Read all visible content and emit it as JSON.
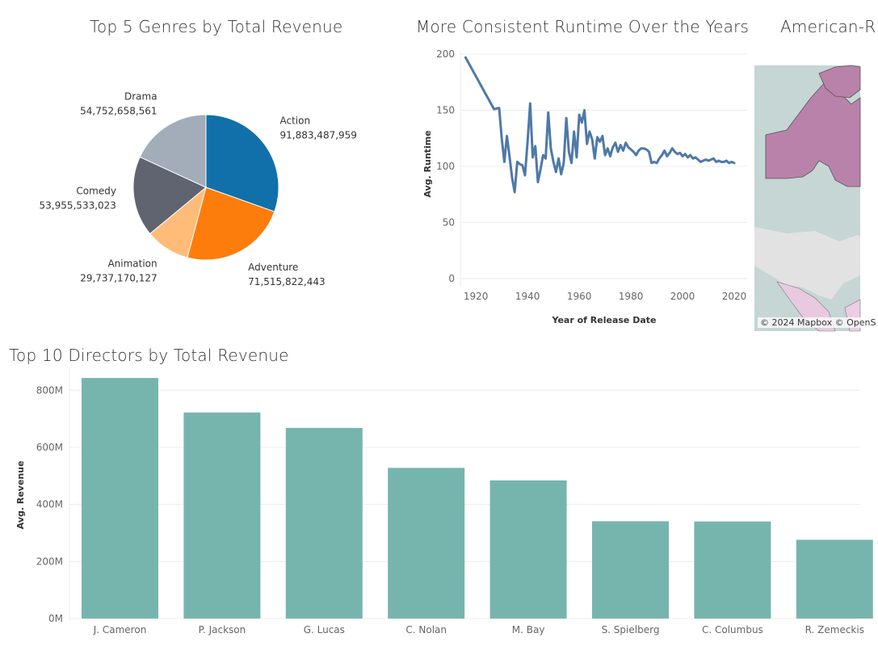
{
  "colors": {
    "pie": [
      "#1170aa",
      "#fc7d0b",
      "#ffbc79",
      "#5f6470",
      "#a3acb9"
    ],
    "line": "#4e79a7",
    "bar": "#76b5ae",
    "grid": "#ececec",
    "map_water": "#c5d6d4",
    "map_land": "#e2e2e2",
    "map_highlight": "#b982aa",
    "map_light": "#ebcde4"
  },
  "map_panel": {
    "title": "American-R",
    "attribution": "© 2024 Mapbox © OpenS"
  },
  "chart_data": [
    {
      "type": "pie",
      "title": "Top 5 Genres by Total Revenue",
      "slices": [
        {
          "label": "Action",
          "value": 91883487959,
          "value_text": "91,883,487,959"
        },
        {
          "label": "Adventure",
          "value": 71515822443,
          "value_text": "71,515,822,443"
        },
        {
          "label": "Animation",
          "value": 29737170127,
          "value_text": "29,737,170,127"
        },
        {
          "label": "Comedy",
          "value": 53955533023,
          "value_text": "53,955,533,023"
        },
        {
          "label": "Drama",
          "value": 54752658561,
          "value_text": "54,752,658,561"
        }
      ]
    },
    {
      "type": "line",
      "title": "More Consistent Runtime Over the Years",
      "xlabel": "Year of Release Date",
      "ylabel": "Avg. Runtime",
      "xlim": [
        1914,
        2025
      ],
      "ylim": [
        0,
        200
      ],
      "xticks": [
        1920,
        1940,
        1960,
        1980,
        2000,
        2020
      ],
      "yticks": [
        0,
        50,
        100,
        150,
        200
      ],
      "x": [
        1916,
        1927,
        1929,
        1930,
        1931,
        1932,
        1933,
        1934,
        1935,
        1936,
        1937,
        1938,
        1939,
        1940,
        1941,
        1942,
        1943,
        1944,
        1945,
        1946,
        1947,
        1948,
        1949,
        1950,
        1951,
        1952,
        1953,
        1954,
        1955,
        1956,
        1957,
        1958,
        1959,
        1960,
        1961,
        1962,
        1963,
        1964,
        1965,
        1966,
        1967,
        1968,
        1969,
        1970,
        1971,
        1972,
        1973,
        1974,
        1975,
        1976,
        1977,
        1978,
        1979,
        1980,
        1981,
        1982,
        1983,
        1984,
        1985,
        1986,
        1987,
        1988,
        1989,
        1990,
        1991,
        1992,
        1993,
        1994,
        1995,
        1996,
        1997,
        1998,
        1999,
        2000,
        2001,
        2002,
        2003,
        2004,
        2005,
        2006,
        2007,
        2008,
        2009,
        2010,
        2011,
        2012,
        2013,
        2014,
        2015,
        2016,
        2017,
        2018,
        2019,
        2020
      ],
      "series": [
        {
          "values": [
            197,
            151,
            152,
            125,
            104,
            127,
            109,
            90,
            77,
            104,
            102,
            101,
            92,
            122,
            156,
            108,
            118,
            86,
            97,
            110,
            107,
            148,
            116,
            104,
            95,
            107,
            93,
            103,
            143,
            113,
            103,
            131,
            108,
            146,
            139,
            150,
            120,
            131,
            124,
            107,
            126,
            122,
            127,
            110,
            116,
            109,
            117,
            121,
            113,
            119,
            114,
            121,
            117,
            115,
            113,
            110,
            114,
            116,
            116,
            115,
            113,
            103,
            104,
            103,
            107,
            110,
            114,
            109,
            112,
            116,
            113,
            111,
            112,
            109,
            111,
            108,
            110,
            107,
            108,
            106,
            104,
            105,
            106,
            105,
            106,
            107,
            104,
            105,
            104,
            104,
            105,
            103,
            104,
            103
          ]
        }
      ]
    },
    {
      "type": "bar",
      "title": "Top 10 Directors by Total Revenue",
      "ylabel": "Avg. Revenue",
      "ylim": [
        0,
        880
      ],
      "yticks": [
        0,
        200,
        400,
        600,
        800
      ],
      "ytick_labels": [
        "0M",
        "200M",
        "400M",
        "600M",
        "800M"
      ],
      "categories": [
        "J. Cameron",
        "P. Jackson",
        "G. Lucas",
        "C. Nolan",
        "M. Bay",
        "S. Spielberg",
        "C. Columbus",
        "R. Zemeckis"
      ],
      "values": [
        843,
        722,
        668,
        528,
        484,
        341,
        340,
        276
      ]
    }
  ]
}
